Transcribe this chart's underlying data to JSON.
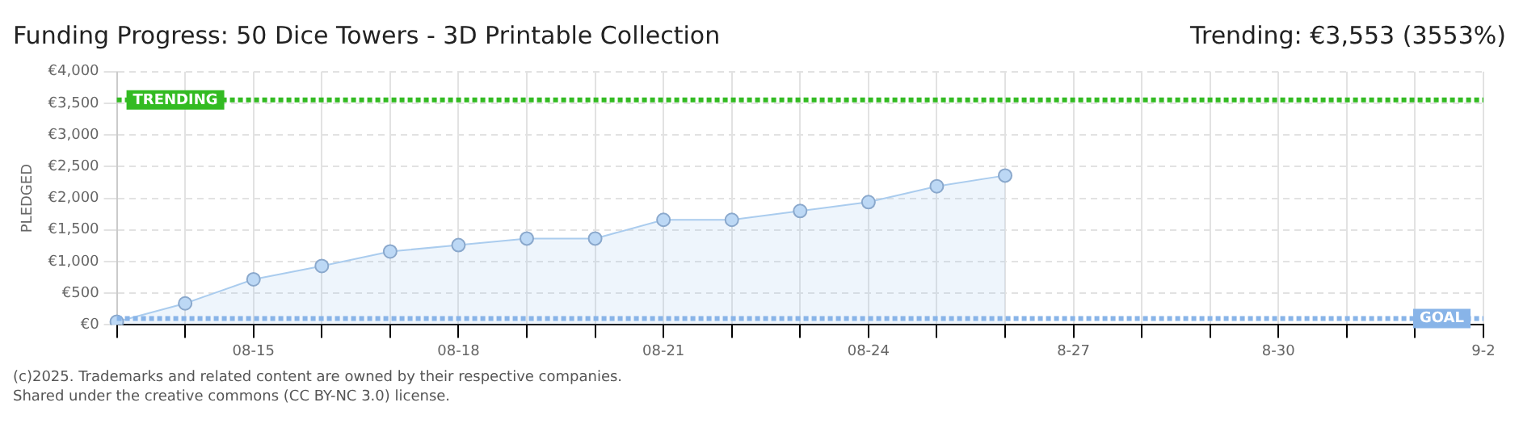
{
  "chart_data": {
    "type": "area",
    "title": "Funding Progress: 50 Dice Towers - 3D Printable Collection",
    "subtitle": "Trending: €3,553 (3553%)",
    "ylabel": "PLEDGED",
    "annotations": [
      "(c)2025. Trademarks and related content are owned by their respective companies.",
      "Shared under the creative commons (CC BY-NC 3.0) license."
    ],
    "categories": [
      null,
      null,
      "08-15",
      null,
      null,
      "08-18",
      null,
      null,
      "08-21",
      null,
      null,
      "08-24",
      null,
      null,
      "8-27",
      null,
      null,
      "8-30",
      null,
      null,
      "9-2"
    ],
    "series": [
      {
        "color": "#aaccee",
        "values": [
          50,
          340,
          720,
          930,
          1160,
          1260,
          1365,
          1365,
          1660,
          1660,
          1800,
          1940,
          2190,
          2360,
          null,
          null,
          null,
          null,
          null,
          null,
          null
        ]
      }
    ],
    "ylim": [
      0,
      4000
    ],
    "yticks": [
      {
        "value": 0,
        "label": "€0"
      },
      {
        "value": 500,
        "label": "€500"
      },
      {
        "value": 1000,
        "label": "€1,000"
      },
      {
        "value": 1500,
        "label": "€1,500"
      },
      {
        "value": 2000,
        "label": "€2,000"
      },
      {
        "value": 2500,
        "label": "€2,500"
      },
      {
        "value": 3000,
        "label": "€3,000"
      },
      {
        "value": 3500,
        "label": "€3,500"
      },
      {
        "value": 4000,
        "label": "€4,000"
      }
    ],
    "ref_lines": [
      {
        "axis": "y",
        "value": 3553,
        "label": "TRENDING",
        "color": "#33bb22",
        "line_style": "dotted"
      },
      {
        "axis": "y",
        "value": 100,
        "label": "GOAL",
        "color": "#88b4e8",
        "line_style": "dotted"
      }
    ],
    "grid": true,
    "marker": "circle",
    "legend": false
  }
}
